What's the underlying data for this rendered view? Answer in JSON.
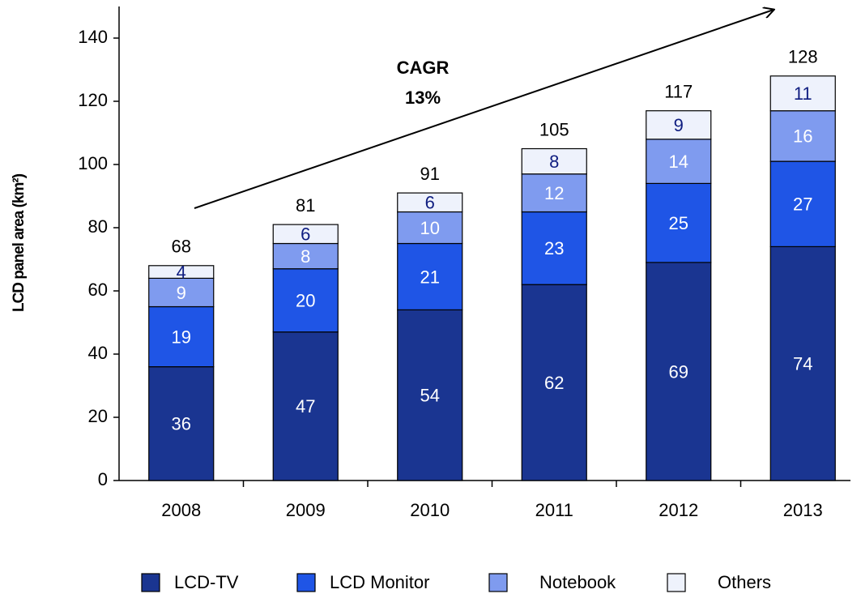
{
  "chart_data": {
    "type": "stacked_bar",
    "y_label": "LCD panel area (km²)",
    "annotation": [
      "CAGR",
      "13%"
    ],
    "categories": [
      "2008",
      "2009",
      "2010",
      "2011",
      "2012",
      "2013"
    ],
    "series": [
      {
        "name": "LCD-TV",
        "color": "#1a3591",
        "label_color": "#ffffff",
        "values": [
          36,
          47,
          54,
          62,
          69,
          74
        ]
      },
      {
        "name": "LCD Monitor",
        "color": "#1f55e6",
        "label_color": "#ffffff",
        "values": [
          19,
          20,
          21,
          23,
          25,
          27
        ]
      },
      {
        "name": "Notebook",
        "color": "#7f9bef",
        "label_color": "#ffffff",
        "values": [
          9,
          8,
          10,
          12,
          14,
          16
        ]
      },
      {
        "name": "Others",
        "color": "#eef2fc",
        "label_color": "#0f1d80",
        "values": [
          4,
          6,
          6,
          8,
          9,
          11
        ]
      }
    ],
    "totals": [
      68,
      81,
      91,
      105,
      117,
      128
    ],
    "ylim": [
      0,
      150
    ],
    "yticks": [
      0,
      20,
      40,
      60,
      80,
      100,
      120,
      140
    ]
  }
}
